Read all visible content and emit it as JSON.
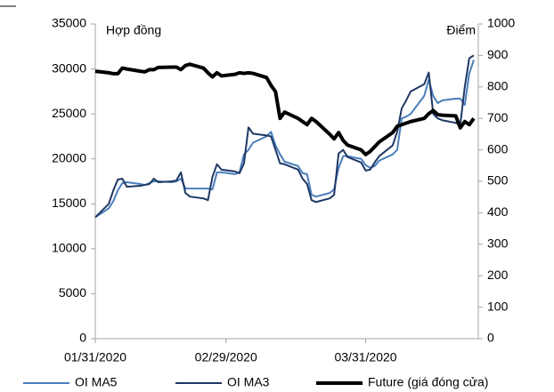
{
  "chart_data": {
    "type": "line",
    "y_label": "Hợp đồng",
    "y2_label": "Điểm",
    "x": [
      "01/31/2020",
      "02/03/2020",
      "02/04/2020",
      "02/05/2020",
      "02/06/2020",
      "02/07/2020",
      "02/10/2020",
      "02/11/2020",
      "02/12/2020",
      "02/13/2020",
      "02/14/2020",
      "02/17/2020",
      "02/18/2020",
      "02/19/2020",
      "02/20/2020",
      "02/21/2020",
      "02/24/2020",
      "02/25/2020",
      "02/26/2020",
      "02/27/2020",
      "02/28/2020",
      "03/02/2020",
      "03/03/2020",
      "03/04/2020",
      "03/05/2020",
      "03/06/2020",
      "03/09/2020",
      "03/10/2020",
      "03/11/2020",
      "03/12/2020",
      "03/13/2020",
      "03/16/2020",
      "03/17/2020",
      "03/18/2020",
      "03/19/2020",
      "03/20/2020",
      "03/23/2020",
      "03/24/2020",
      "03/25/2020",
      "03/26/2020",
      "03/27/2020",
      "03/30/2020",
      "03/31/2020",
      "04/01/2020",
      "04/02/2020",
      "04/03/2020",
      "04/06/2020",
      "04/07/2020",
      "04/08/2020",
      "04/09/2020",
      "04/10/2020",
      "04/13/2020",
      "04/14/2020",
      "04/15/2020",
      "04/16/2020",
      "04/17/2020",
      "04/20/2020",
      "04/21/2020",
      "04/22/2020",
      "04/23/2020",
      "04/24/2020"
    ],
    "xlim": [
      "01/31/2020",
      "04/25/2020"
    ],
    "xticks": [
      "01/31/2020",
      "02/29/2020",
      "03/31/2020"
    ],
    "ylim": [
      0,
      35000
    ],
    "yticks": [
      0,
      5000,
      10000,
      15000,
      20000,
      25000,
      30000,
      35000
    ],
    "y2lim": [
      0,
      1000
    ],
    "y2ticks": [
      0,
      100,
      200,
      300,
      400,
      500,
      600,
      700,
      800,
      900,
      1000
    ],
    "legend": "bottom",
    "series": [
      {
        "name": "OI MA5",
        "color": "#4a7ebb",
        "width": 2,
        "values": [
          13500,
          14500,
          15300,
          16500,
          17300,
          17400,
          17200,
          17100,
          17300,
          17500,
          17500,
          17400,
          17500,
          17800,
          16700,
          16700,
          16700,
          16700,
          16600,
          18500,
          18500,
          18300,
          18500,
          20500,
          21000,
          21800,
          22500,
          23000,
          21500,
          20500,
          19700,
          19200,
          18400,
          18300,
          16000,
          15800,
          16200,
          16600,
          19000,
          20300,
          20300,
          20000,
          19300,
          19000,
          19200,
          19800,
          20500,
          21000,
          24500,
          24700,
          25000,
          27000,
          28800,
          27000,
          26200,
          26500,
          26700,
          26700,
          26000,
          29500,
          31000
        ]
      },
      {
        "name": "OI MA3",
        "color": "#1f3864",
        "width": 2,
        "values": [
          13500,
          15000,
          16500,
          17700,
          17800,
          16900,
          17000,
          17100,
          17200,
          17800,
          17400,
          17500,
          17600,
          18500,
          16200,
          15800,
          15600,
          15400,
          18000,
          19400,
          18800,
          18600,
          18400,
          19500,
          23500,
          22800,
          22600,
          22500,
          21000,
          19500,
          19400,
          18800,
          17800,
          17200,
          15400,
          15200,
          15600,
          16000,
          20600,
          21000,
          20200,
          19600,
          18700,
          18800,
          19600,
          20300,
          21500,
          23000,
          25600,
          26500,
          27500,
          28300,
          29600,
          25000,
          24500,
          24300,
          24000,
          23800,
          28000,
          31200,
          31500
        ]
      },
      {
        "name": "Future (giá đóng cửa)",
        "color": "#000000",
        "width": 4,
        "axis": "y2",
        "values": [
          850,
          845,
          842,
          842,
          860,
          857,
          850,
          848,
          855,
          855,
          862,
          863,
          863,
          855,
          868,
          872,
          860,
          845,
          832,
          845,
          835,
          840,
          845,
          843,
          845,
          843,
          830,
          805,
          785,
          700,
          720,
          700,
          690,
          680,
          700,
          690,
          650,
          635,
          655,
          630,
          615,
          600,
          585,
          595,
          610,
          625,
          655,
          675,
          680,
          685,
          690,
          700,
          715,
          725,
          712,
          710,
          708,
          670,
          690,
          680,
          700
        ]
      }
    ]
  }
}
